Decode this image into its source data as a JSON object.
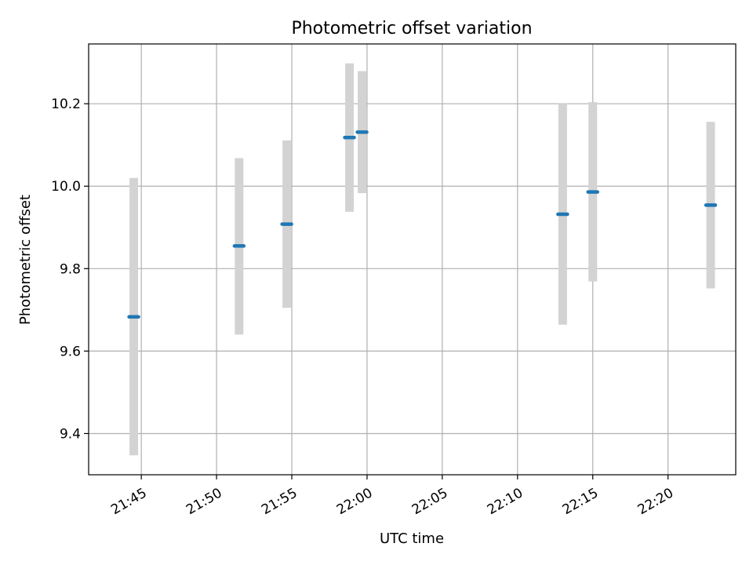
{
  "chart_data": {
    "type": "scatter",
    "title": "Photometric offset variation",
    "xlabel": "UTC time",
    "ylabel": "Photometric offset",
    "xlim": [
      "21:41:30",
      "22:24:30"
    ],
    "ylim": [
      9.3,
      10.345
    ],
    "x_ticks": [
      "21:45",
      "21:50",
      "21:55",
      "22:00",
      "22:05",
      "22:10",
      "22:15",
      "22:20"
    ],
    "y_ticks": [
      9.4,
      9.6,
      9.8,
      10.0,
      10.2
    ],
    "grid": true,
    "series": [
      {
        "points": [
          {
            "time": "21:44:30",
            "value": 9.683,
            "err_low": 9.347,
            "err_high": 10.02
          },
          {
            "time": "21:51:30",
            "value": 9.855,
            "err_low": 9.64,
            "err_high": 10.068
          },
          {
            "time": "21:54:40",
            "value": 9.908,
            "err_low": 9.705,
            "err_high": 10.111
          },
          {
            "time": "21:58:50",
            "value": 10.118,
            "err_low": 9.938,
            "err_high": 10.298
          },
          {
            "time": "21:59:40",
            "value": 10.131,
            "err_low": 9.983,
            "err_high": 10.279
          },
          {
            "time": "22:13:00",
            "value": 9.932,
            "err_low": 9.664,
            "err_high": 10.2
          },
          {
            "time": "22:15:00",
            "value": 9.986,
            "err_low": 9.769,
            "err_high": 10.204
          },
          {
            "time": "22:22:50",
            "value": 9.954,
            "err_low": 9.752,
            "err_high": 10.156
          }
        ]
      }
    ],
    "colors": {
      "marker": "#1f77b4",
      "errorbar": "#d3d3d3",
      "grid": "#b0b0b0",
      "axes": "#000000"
    }
  }
}
